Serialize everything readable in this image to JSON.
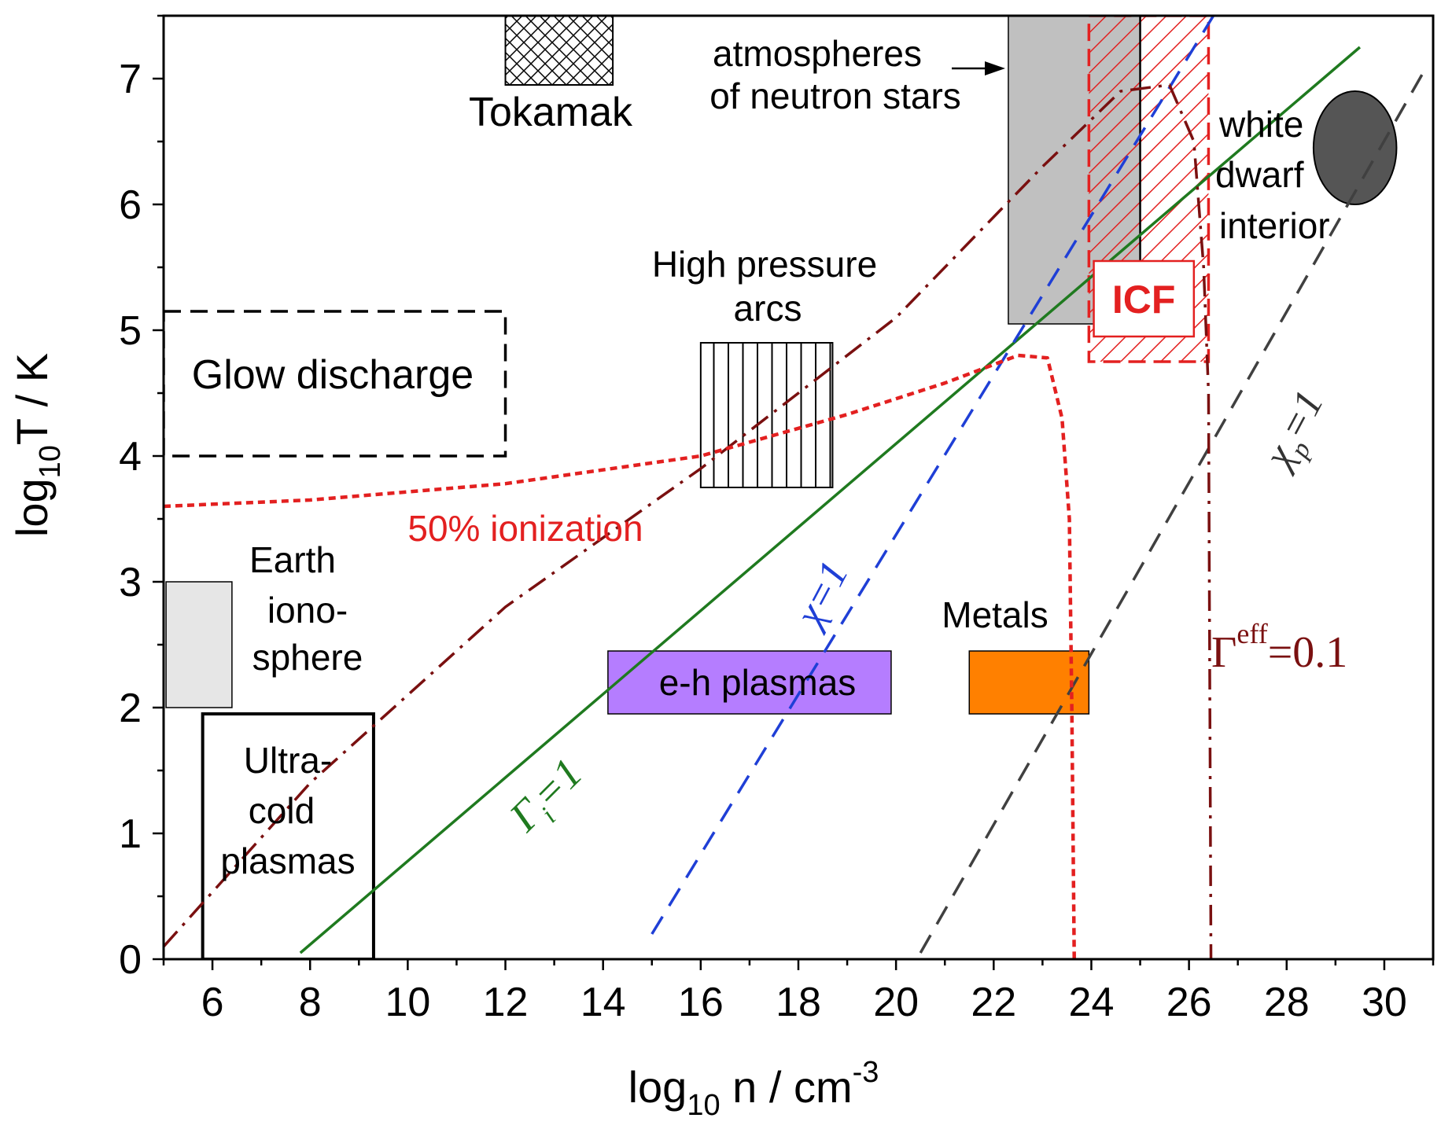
{
  "chart_data": {
    "type": "line",
    "title": "",
    "xlabel": "log10 n / cm-3",
    "ylabel": "log10T / K",
    "xlim": [
      5,
      31
    ],
    "ylim": [
      0,
      7.5
    ],
    "x_ticks": [
      6,
      8,
      10,
      12,
      14,
      16,
      18,
      20,
      22,
      24,
      26,
      28,
      30
    ],
    "y_ticks": [
      0,
      1,
      2,
      3,
      4,
      5,
      6,
      7
    ],
    "x_tick_labels": [
      "6",
      "8",
      "10",
      "12",
      "14",
      "16",
      "18",
      "20",
      "22",
      "24",
      "26",
      "28",
      "30"
    ],
    "y_tick_labels": [
      "0",
      "1",
      "2",
      "3",
      "4",
      "5",
      "6",
      "7"
    ],
    "axis_labels": {
      "x_main": "log",
      "x_sub": "10",
      "x_rest": " n / cm",
      "x_sup": "-3",
      "y_main": "log",
      "y_sub": "10",
      "y_rest": "T / K"
    },
    "regions": [
      {
        "name": "Tokamak",
        "x": [
          12,
          14.2
        ],
        "y": [
          6.95,
          7.5
        ],
        "fill": "crosshatch"
      },
      {
        "name": "Glow discharge",
        "x": [
          5,
          12
        ],
        "y": [
          4,
          5.15
        ],
        "fill": "none-dashed"
      },
      {
        "name": "High pressure arcs",
        "x": [
          16,
          18.7
        ],
        "y": [
          3.75,
          4.9
        ],
        "fill": "vertical-lines"
      },
      {
        "name": "Earth ionosphere",
        "x": [
          5.05,
          6.4
        ],
        "y": [
          2,
          3
        ],
        "fill": "#e6e6e6"
      },
      {
        "name": "Ultra-cold plasmas",
        "x": [
          5.8,
          9.3
        ],
        "y": [
          0,
          1.95
        ],
        "fill": "none-solid"
      },
      {
        "name": "e-h plasmas",
        "x": [
          14.1,
          19.9
        ],
        "y": [
          1.95,
          2.45
        ],
        "fill": "#b57dff"
      },
      {
        "name": "Metals",
        "x": [
          21.5,
          23.95
        ],
        "y": [
          1.95,
          2.45
        ],
        "fill": "#ff8000"
      },
      {
        "name": "atmospheres of neutron stars",
        "x": [
          22.3,
          25
        ],
        "y": [
          5.05,
          7.5
        ],
        "fill": "#c0c0c0"
      },
      {
        "name": "ICF",
        "x": [
          23.95,
          26.4
        ],
        "y": [
          4.75,
          7.5
        ],
        "fill": "red-hatch"
      },
      {
        "name": "white dwarf interior",
        "center": [
          29.4,
          6.45
        ],
        "radius_x": 0.85,
        "radius_y": 0.45,
        "fill": "#555555"
      }
    ],
    "series": [
      {
        "name": "Γi=1",
        "style": "solid",
        "color": "#1f7a1f",
        "x": [
          7.8,
          29.5
        ],
        "y": [
          0.05,
          7.25
        ]
      },
      {
        "name": "χ=1",
        "style": "dashed",
        "color": "#1f3fd6",
        "x": [
          15,
          26.5
        ],
        "y": [
          0.2,
          7.5
        ]
      },
      {
        "name": "χp=1",
        "style": "dashed",
        "color": "#404040",
        "x": [
          20.5,
          30.8
        ],
        "y": [
          0.05,
          7.05
        ]
      },
      {
        "name": "Γeff=0.1",
        "style": "dash-dot",
        "color": "#7a1010",
        "x": [
          5,
          8,
          12,
          16,
          20,
          23,
          24.6,
          25.6,
          26.1,
          26.3,
          26.4,
          26.45
        ],
        "y": [
          0.1,
          1.4,
          2.8,
          3.9,
          5.1,
          6.3,
          6.9,
          6.95,
          6.5,
          5.5,
          4.5,
          0
        ]
      },
      {
        "name": "50% ionization",
        "style": "dotted",
        "color": "#e32020",
        "x": [
          5,
          8,
          12,
          16,
          19,
          21,
          22.5,
          23.1,
          23.4,
          23.55,
          23.6,
          23.65
        ],
        "y": [
          3.6,
          3.65,
          3.78,
          4.0,
          4.33,
          4.58,
          4.8,
          4.78,
          4.3,
          3.5,
          2.0,
          0
        ]
      }
    ],
    "annotations": {
      "tokamak": "Tokamak",
      "glow": "Glow discharge",
      "hp1": "High pressure",
      "hp2": "arcs",
      "atm1": "atmospheres",
      "atm2": "of neutron stars",
      "wd1": "white",
      "wd2": "dwarf",
      "wd3": "interior",
      "icf": "ICF",
      "ion50": "50% ionization",
      "earth1": "Earth",
      "earth2": "iono-",
      "earth3": "sphere",
      "metals": "Metals",
      "eh": "e-h plasmas",
      "uc1": "Ultra-",
      "uc2": "cold",
      "uc3": "plasmas",
      "chi_main": "χ",
      "chi_rest": "=1",
      "gamma_i_main": "Γ",
      "gamma_i_sub": "i",
      "gamma_i_rest": "=1",
      "chip_main": "χ",
      "chip_sub": "p",
      "chip_rest": "=1",
      "geff_main": "Γ",
      "geff_sup": "eff",
      "geff_rest": "=0.1"
    }
  }
}
